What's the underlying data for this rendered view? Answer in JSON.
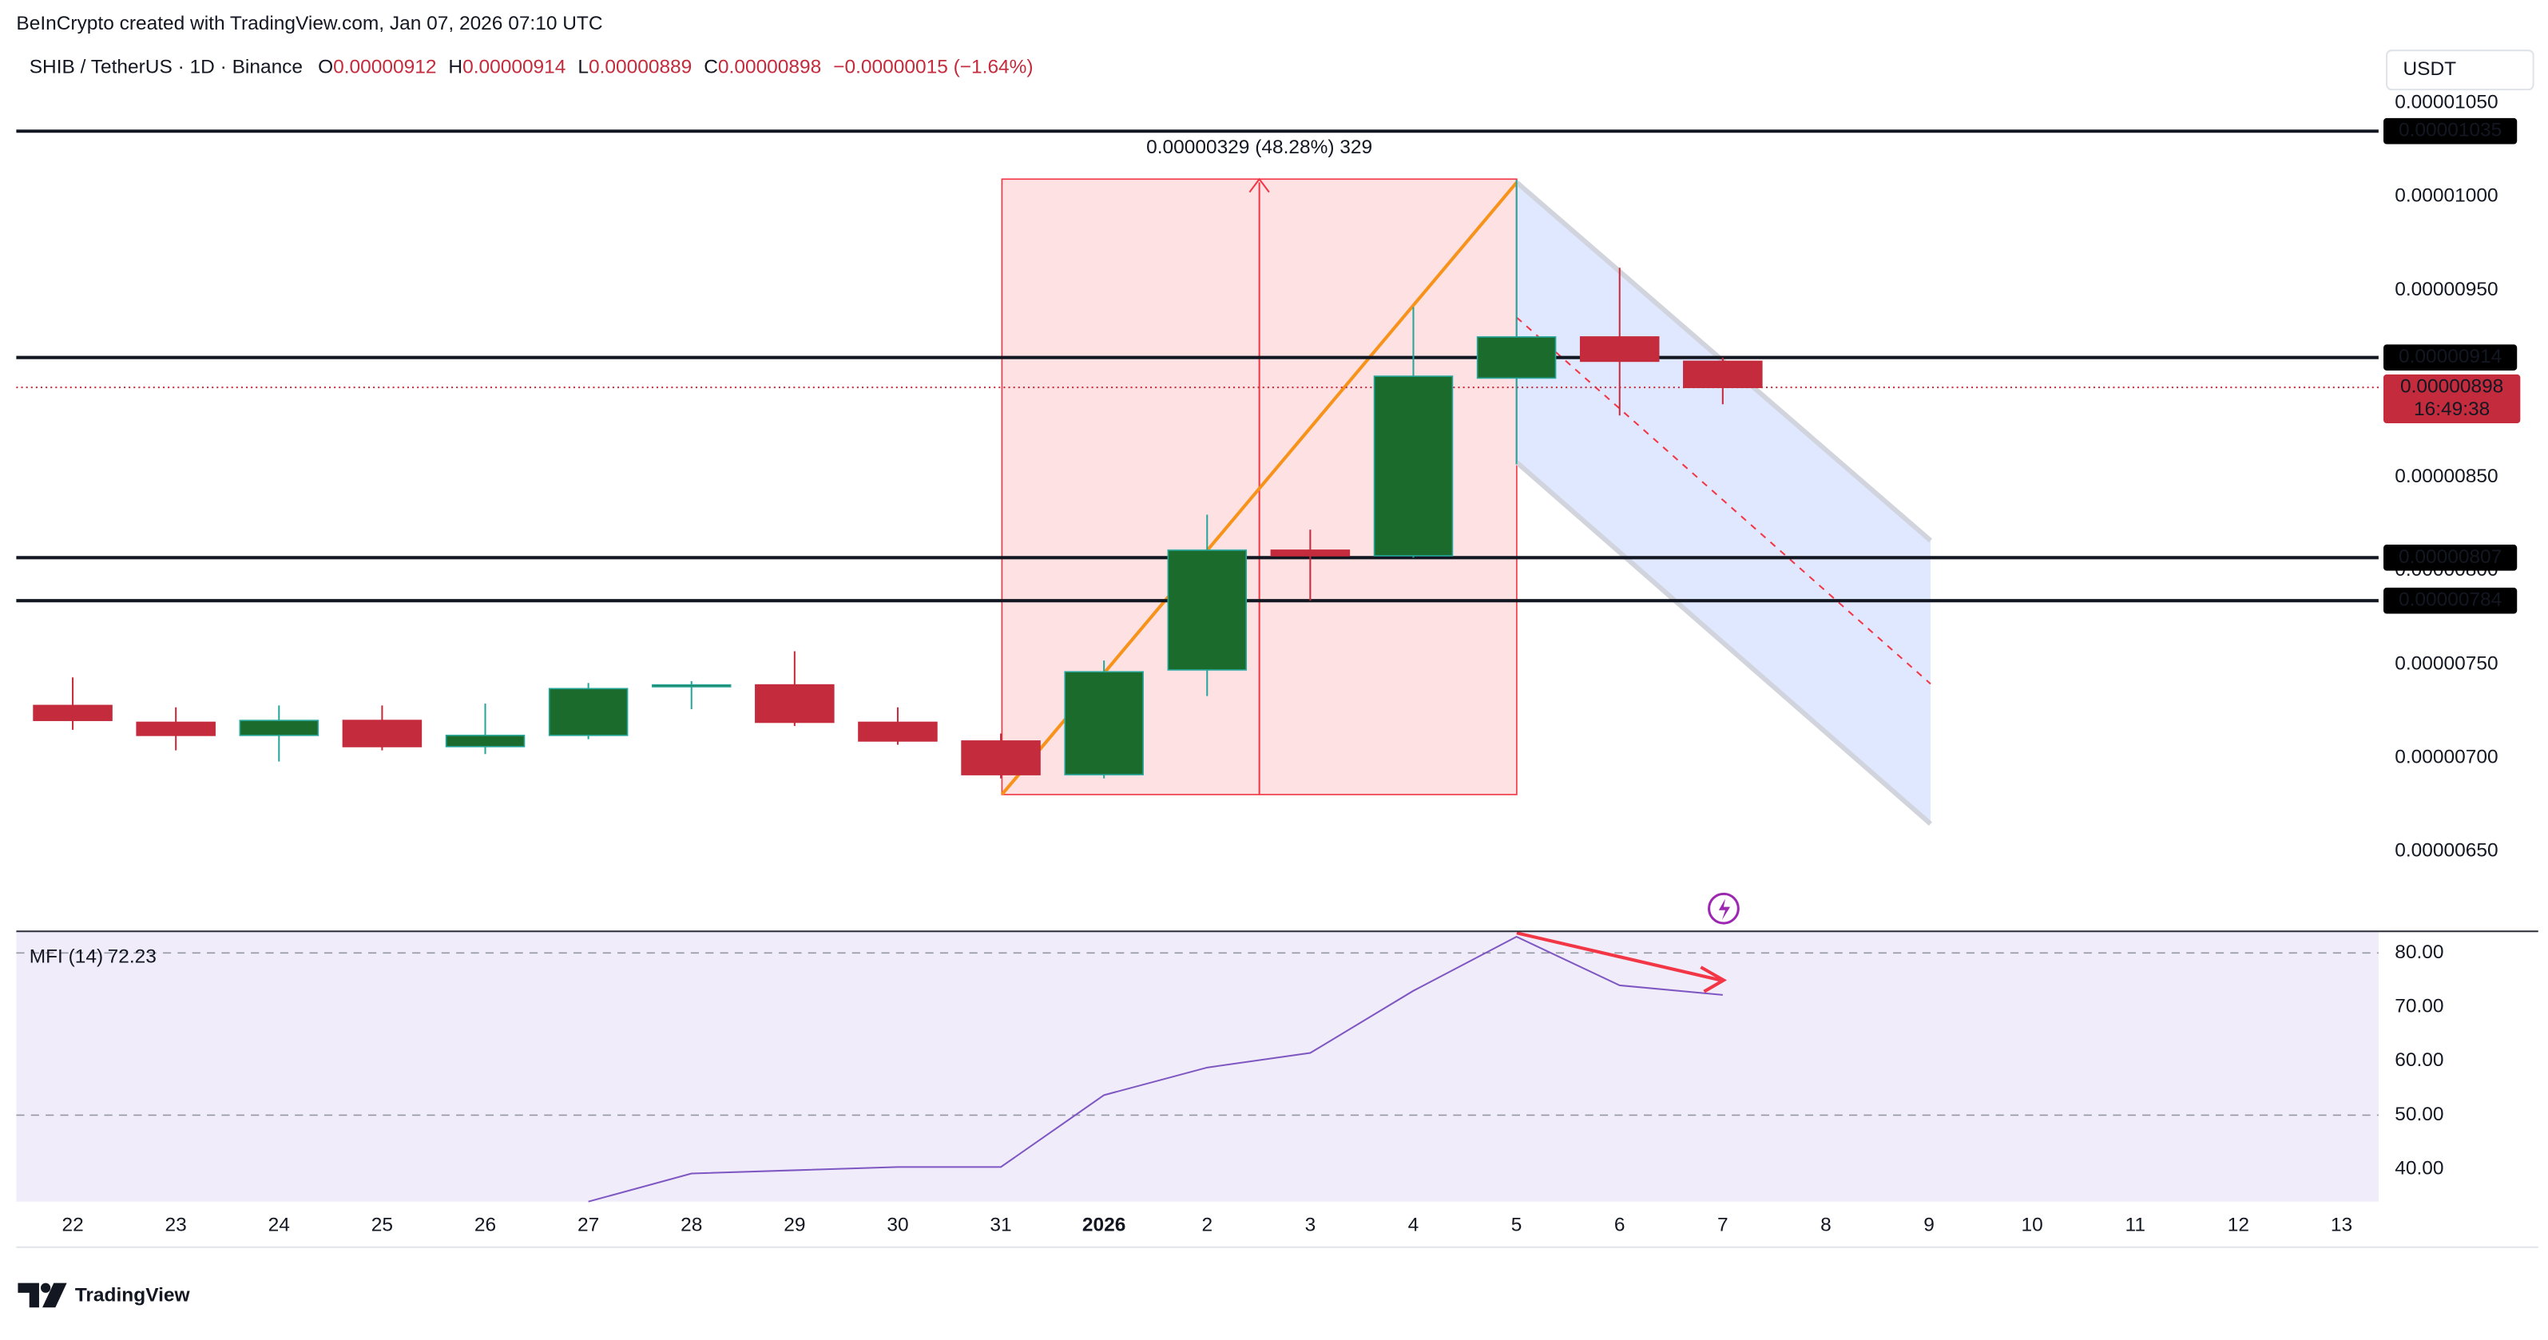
{
  "header": {
    "credit": "BeInCrypto created with TradingView.com, Jan 07, 2026 07:10 UTC",
    "symbol": "SHIB / TetherUS · 1D · Binance",
    "ohlc": [
      {
        "key": "O",
        "value": "0.00000912"
      },
      {
        "key": "H",
        "value": "0.00000914"
      },
      {
        "key": "L",
        "value": "0.00000889"
      },
      {
        "key": "C",
        "value": "0.00000898"
      }
    ],
    "change": "−0.00000015 (−1.64%)"
  },
  "chart_data": [
    {
      "type": "candlestick",
      "currency": "USDT",
      "categories": [
        "22",
        "23",
        "24",
        "25",
        "26",
        "27",
        "28",
        "29",
        "30",
        "31",
        "2026",
        "2",
        "3",
        "4",
        "5",
        "6",
        "7",
        "8",
        "9",
        "10",
        "11",
        "12",
        "13"
      ],
      "open": [
        7.28e-06,
        7.19e-06,
        7.12e-06,
        7.2e-06,
        7.06e-06,
        7.12e-06,
        7.38e-06,
        7.39e-06,
        7.19e-06,
        7.09e-06,
        6.91e-06,
        7.47e-06,
        8.11e-06,
        8.08e-06,
        9.03e-06,
        9.25e-06,
        9.12e-06,
        null,
        null,
        null,
        null,
        null,
        null
      ],
      "high": [
        7.43e-06,
        7.27e-06,
        7.28e-06,
        7.28e-06,
        7.29e-06,
        7.4e-06,
        7.41e-06,
        7.57e-06,
        7.27e-06,
        7.13e-06,
        7.52e-06,
        8.3e-06,
        8.22e-06,
        9.41e-06,
        1.009e-05,
        9.62e-06,
        9.14e-06,
        null,
        null,
        null,
        null,
        null,
        null
      ],
      "low": [
        7.15e-06,
        7.04e-06,
        6.98e-06,
        7.04e-06,
        7.02e-06,
        7.1e-06,
        7.26e-06,
        7.17e-06,
        7.07e-06,
        6.89e-06,
        6.89e-06,
        7.33e-06,
        7.84e-06,
        8.07e-06,
        8.57e-06,
        8.83e-06,
        8.89e-06,
        null,
        null,
        null,
        null,
        null,
        null
      ],
      "close": [
        7.2e-06,
        7.12e-06,
        7.2e-06,
        7.06e-06,
        7.12e-06,
        7.37e-06,
        7.39e-06,
        7.19e-06,
        7.09e-06,
        6.91e-06,
        7.46e-06,
        8.11e-06,
        8.08e-06,
        9.04e-06,
        9.25e-06,
        9.12e-06,
        8.98e-06,
        null,
        null,
        null,
        null,
        null,
        null
      ],
      "up_color": "#1b6b2c",
      "down_color": "#c42b3c",
      "ylim": [
        6.09e-06,
        1.079e-05
      ],
      "yticks": [
        {
          "value": 6.5e-06,
          "label": "0.00000650"
        },
        {
          "value": 7e-06,
          "label": "0.00000700"
        },
        {
          "value": 7.5e-06,
          "label": "0.00000750"
        },
        {
          "value": 8e-06,
          "label": "0.00000800"
        },
        {
          "value": 8.5e-06,
          "label": "0.00000850"
        },
        {
          "value": 9e-06,
          "label": "0.00000900"
        },
        {
          "value": 9.5e-06,
          "label": "0.00000950"
        },
        {
          "value": 1e-05,
          "label": "0.00001000"
        },
        {
          "value": 1.05e-05,
          "label": "0.00001050"
        }
      ],
      "levels": [
        {
          "value": 1.035e-05,
          "label": "0.00001035"
        },
        {
          "value": 9.14e-06,
          "label": "0.00000914"
        },
        {
          "value": 8.07e-06,
          "label": "0.00000807"
        },
        {
          "value": 7.84e-06,
          "label": "0.00000784"
        }
      ],
      "last_price": {
        "value": 8.98e-06,
        "label": "0.00000898"
      },
      "countdown": "16:49:38",
      "measure_label": "0.00000329 (48.28%) 329"
    },
    {
      "type": "line",
      "title": "MFI (14)",
      "value_label": "72.23",
      "color": "#7e57c2",
      "values": [
        null,
        null,
        null,
        null,
        null,
        34,
        39.2,
        39.8,
        40.4,
        40.4,
        53.7,
        58.8,
        61.5,
        73,
        83,
        74,
        72.23,
        null,
        null,
        null,
        null,
        null,
        null
      ],
      "ylim": [
        34,
        84
      ],
      "yticks": [
        {
          "value": 40,
          "label": "40.00"
        },
        {
          "value": 50,
          "label": "50.00"
        },
        {
          "value": 60,
          "label": "60.00"
        },
        {
          "value": 70,
          "label": "70.00"
        },
        {
          "value": 80,
          "label": "80.00"
        }
      ],
      "bands": [
        50,
        80
      ]
    }
  ],
  "footer": {
    "logo": "TradingView"
  }
}
